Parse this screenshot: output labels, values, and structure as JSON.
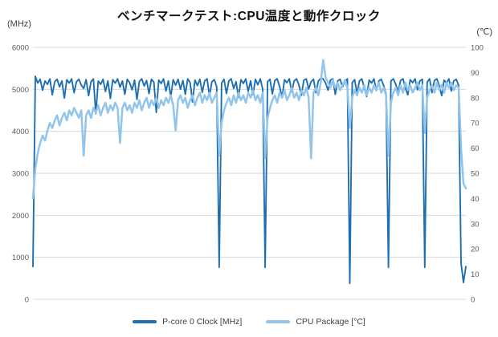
{
  "title": "ベンチマークテスト:CPU温度と動作クロック",
  "chart_data": {
    "type": "line",
    "title": "ベンチマークテスト:CPU温度と動作クロック",
    "x_description": "time samples during benchmark run (unlabeled axis, 180 samples)",
    "grid": "horizontal major gridlines only",
    "legend_position": "bottom center",
    "left_axis": {
      "unit": "(MHz)",
      "min": 0,
      "max": 6000,
      "ticks": [
        0,
        1000,
        2000,
        3000,
        4000,
        5000,
        6000
      ]
    },
    "right_axis": {
      "unit": "(℃)",
      "min": 0,
      "max": 100,
      "ticks": [
        0,
        10,
        20,
        30,
        40,
        50,
        60,
        70,
        80,
        90,
        100
      ]
    },
    "series": [
      {
        "name": "P-core 0 Clock [MHz]",
        "axis": "left",
        "color": "#1E6FB2",
        "values": [
          780,
          5310,
          5150,
          5240,
          4980,
          5200,
          5120,
          5250,
          4870,
          5180,
          5240,
          5060,
          5200,
          4790,
          5230,
          5150,
          5250,
          4920,
          5180,
          5240,
          5100,
          5020,
          5230,
          4850,
          5180,
          5250,
          4420,
          5200,
          5120,
          5240,
          4950,
          5200,
          4780,
          5230,
          5150,
          5250,
          5050,
          5200,
          4880,
          5240,
          5160,
          4990,
          5220,
          4760,
          5190,
          5250,
          5080,
          5210,
          4900,
          5240,
          5170,
          4450,
          5220,
          5140,
          5250,
          4960,
          5200,
          4820,
          5230,
          5100,
          5240,
          5000,
          5210,
          4880,
          5250,
          5160,
          4700,
          5220,
          5090,
          5240,
          4930,
          5200,
          5250,
          4840,
          5180,
          5230,
          5060,
          760,
          5150,
          5240,
          4900,
          5200,
          5250,
          5020,
          5180,
          4810,
          5230,
          5140,
          5250,
          4950,
          5200,
          4870,
          5240,
          5110,
          5250,
          5000,
          760,
          5180,
          5240,
          4890,
          5210,
          5250,
          5070,
          4800,
          5230,
          5160,
          5250,
          4940,
          5200,
          5250,
          5100,
          4860,
          5220,
          5250,
          5010,
          5180,
          5240,
          4920,
          5200,
          5260,
          5250,
          5150,
          4980,
          5220,
          5250,
          4880,
          5200,
          5240,
          5060,
          5190,
          5250,
          380,
          5160,
          5230,
          4910,
          5200,
          5250,
          5040,
          4830,
          5220,
          5150,
          5250,
          4970,
          5200,
          5240,
          5090,
          4900,
          760,
          5200,
          5250,
          5120,
          4940,
          5210,
          5250,
          5030,
          4870,
          5230,
          5160,
          5250,
          4990,
          5200,
          5240,
          760,
          5170,
          5250,
          4920,
          5210,
          5250,
          5080,
          4850,
          5220,
          5150,
          5250,
          4960,
          5200,
          5240,
          5100,
          860,
          400,
          780
        ]
      },
      {
        "name": "CPU Package [°C]",
        "axis": "right",
        "color": "#92C5EC",
        "values": [
          40,
          52,
          58,
          62,
          65,
          63,
          67,
          70,
          68,
          71,
          73,
          69,
          72,
          74,
          71,
          75,
          73,
          76,
          74,
          72,
          75,
          57,
          73,
          75,
          72,
          76,
          74,
          77,
          73,
          76,
          78,
          74,
          77,
          75,
          78,
          76,
          62,
          76,
          78,
          75,
          77,
          74,
          78,
          76,
          79,
          75,
          78,
          80,
          76,
          79,
          77,
          80,
          76,
          79,
          77,
          80,
          78,
          81,
          77,
          67,
          79,
          81,
          78,
          80,
          76,
          79,
          81,
          77,
          80,
          82,
          78,
          81,
          79,
          82,
          78,
          80,
          82,
          57,
          70,
          75,
          78,
          80,
          77,
          81,
          78,
          82,
          79,
          81,
          78,
          82,
          80,
          83,
          79,
          81,
          78,
          82,
          56,
          72,
          76,
          79,
          81,
          78,
          82,
          80,
          83,
          79,
          81,
          84,
          80,
          82,
          79,
          83,
          81,
          84,
          80,
          56,
          82,
          84,
          81,
          86,
          95,
          88,
          86,
          84,
          87,
          84,
          86,
          83,
          85,
          87,
          84,
          68,
          80,
          83,
          81,
          84,
          82,
          85,
          81,
          84,
          82,
          85,
          83,
          86,
          82,
          84,
          81,
          57,
          78,
          82,
          84,
          81,
          85,
          82,
          86,
          83,
          85,
          82,
          84,
          86,
          83,
          85,
          66,
          80,
          83,
          85,
          82,
          86,
          83,
          85,
          82,
          86,
          84,
          86,
          83,
          85,
          84,
          60,
          46,
          44
        ]
      }
    ],
    "annotations": {
      "steady_clock_mhz": "≈5100–5270 with dips to ≈4400–4900",
      "idle_drops_mhz": "periodic drops to ≈380–860 between benchmark passes",
      "steady_temp_c": "≈74–86 with dips to ≈56–68 at each pass boundary",
      "temp_peak_c": 95,
      "temp_start_c": 40,
      "temp_end_c": 44
    }
  },
  "colors": {
    "gridline": "#D9D9D9",
    "axis_text": "#595959",
    "background": "#FFFFFF"
  }
}
